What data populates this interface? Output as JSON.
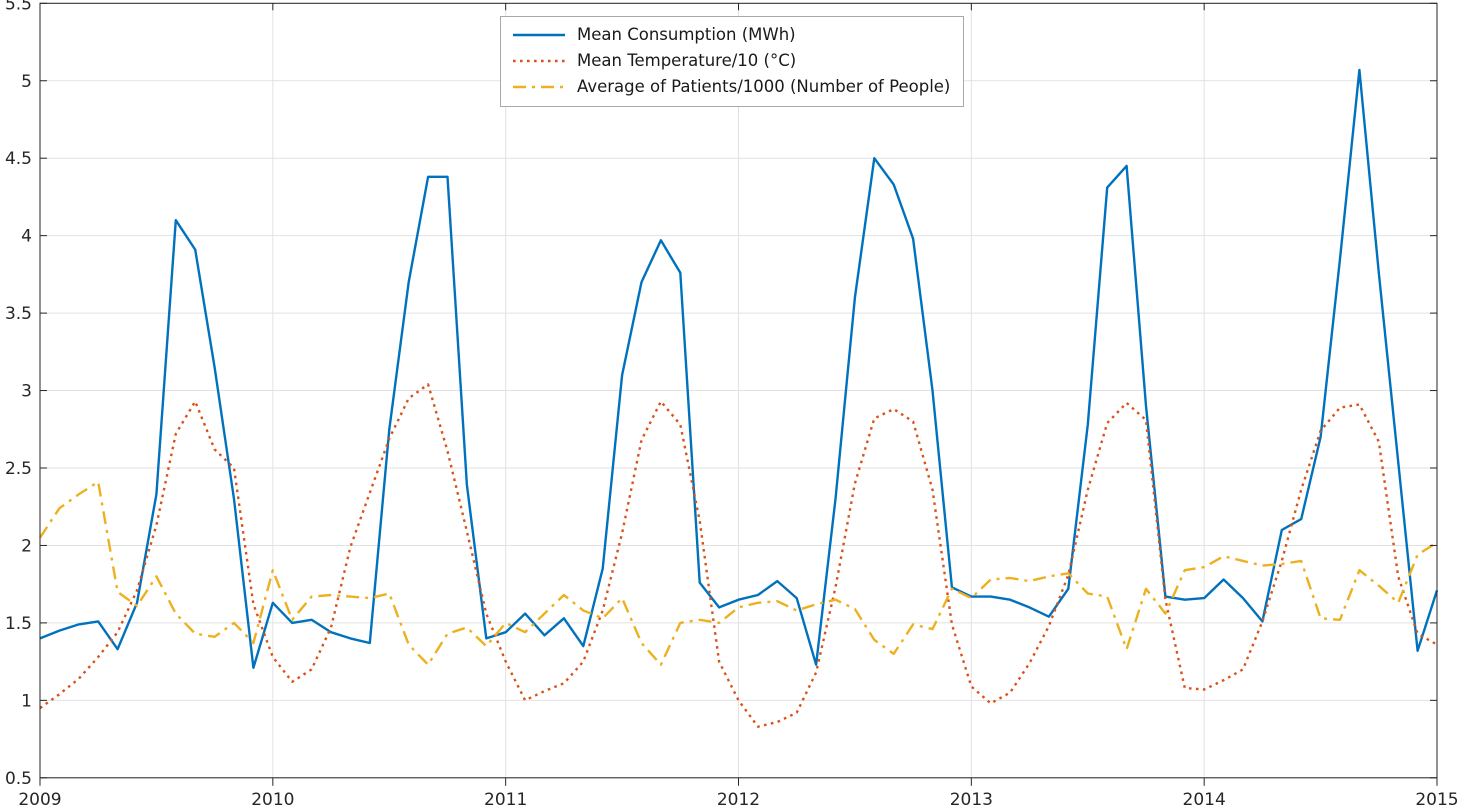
{
  "chart_data": {
    "type": "line",
    "title": "",
    "xlabel": "",
    "ylabel": "",
    "grid": true,
    "legend_position": "top-center",
    "x_start_year": 2009,
    "x_months_per_tick": 12,
    "x_tick_labels": [
      "2009",
      "2010",
      "2011",
      "2012",
      "2013",
      "2014",
      "2015"
    ],
    "y_tick_labels": [
      "0.5",
      "1",
      "1.5",
      "2",
      "2.5",
      "3",
      "3.5",
      "4",
      "4.5",
      "5",
      "5.5"
    ],
    "y_tick_values": [
      0.5,
      1,
      1.5,
      2,
      2.5,
      3,
      3.5,
      4,
      4.5,
      5,
      5.5
    ],
    "ylim": [
      0.5,
      5.5
    ],
    "series": [
      {
        "name": "Mean Consumption (MWh)",
        "color": "#0072BD",
        "style": "solid",
        "values": [
          1.4,
          1.45,
          1.49,
          1.51,
          1.33,
          1.63,
          2.33,
          4.1,
          3.91,
          3.15,
          2.3,
          1.21,
          1.63,
          1.5,
          1.52,
          1.44,
          1.4,
          1.37,
          2.75,
          3.7,
          4.38,
          4.38,
          2.39,
          1.4,
          1.44,
          1.56,
          1.42,
          1.53,
          1.35,
          1.85,
          3.1,
          3.7,
          3.97,
          3.76,
          1.76,
          1.6,
          1.65,
          1.68,
          1.77,
          1.66,
          1.23,
          2.3,
          3.6,
          4.5,
          4.33,
          3.98,
          3.0,
          1.73,
          1.67,
          1.67,
          1.65,
          1.6,
          1.54,
          1.72,
          2.78,
          4.31,
          4.45,
          2.9,
          1.67,
          1.65,
          1.66,
          1.78,
          1.66,
          1.51,
          2.1,
          2.17,
          2.7,
          3.85,
          5.07,
          3.76,
          2.54,
          1.32,
          1.71
        ]
      },
      {
        "name": "Mean Temperature/10 (°C)",
        "color": "#D95319",
        "style": "dotted",
        "values": [
          0.95,
          1.04,
          1.14,
          1.28,
          1.44,
          1.71,
          2.13,
          2.72,
          2.93,
          2.62,
          2.5,
          1.62,
          1.28,
          1.12,
          1.2,
          1.47,
          1.99,
          2.34,
          2.69,
          2.95,
          3.04,
          2.61,
          2.09,
          1.56,
          1.25,
          1.0,
          1.06,
          1.11,
          1.25,
          1.58,
          2.08,
          2.68,
          2.93,
          2.78,
          2.16,
          1.25,
          1.0,
          0.83,
          0.86,
          0.92,
          1.18,
          1.73,
          2.4,
          2.82,
          2.88,
          2.8,
          2.36,
          1.49,
          1.09,
          0.98,
          1.05,
          1.24,
          1.48,
          1.81,
          2.36,
          2.79,
          2.92,
          2.81,
          1.65,
          1.08,
          1.07,
          1.13,
          1.2,
          1.51,
          1.9,
          2.36,
          2.74,
          2.89,
          2.91,
          2.67,
          1.8,
          1.43,
          1.36
        ]
      },
      {
        "name": "Average of Patients/1000 (Number of People)",
        "color": "#EDB120",
        "style": "dashdot",
        "values": [
          2.05,
          2.24,
          2.33,
          2.41,
          1.7,
          1.61,
          1.8,
          1.56,
          1.43,
          1.41,
          1.5,
          1.37,
          1.84,
          1.52,
          1.67,
          1.68,
          1.67,
          1.66,
          1.69,
          1.36,
          1.23,
          1.43,
          1.47,
          1.35,
          1.5,
          1.44,
          1.56,
          1.68,
          1.58,
          1.53,
          1.66,
          1.37,
          1.23,
          1.5,
          1.52,
          1.5,
          1.6,
          1.63,
          1.64,
          1.58,
          1.62,
          1.65,
          1.59,
          1.39,
          1.3,
          1.49,
          1.46,
          1.72,
          1.66,
          1.78,
          1.79,
          1.77,
          1.8,
          1.82,
          1.69,
          1.67,
          1.33,
          1.72,
          1.56,
          1.84,
          1.86,
          1.93,
          1.9,
          1.87,
          1.88,
          1.9,
          1.53,
          1.52,
          1.84,
          1.74,
          1.63,
          1.94,
          2.02
        ]
      }
    ],
    "colors": {
      "grid": "#E2E2E2",
      "axis": "#262626",
      "tick_label": "#262626",
      "background": "#FFFFFF",
      "legend_border": "#A8A8A8"
    }
  }
}
